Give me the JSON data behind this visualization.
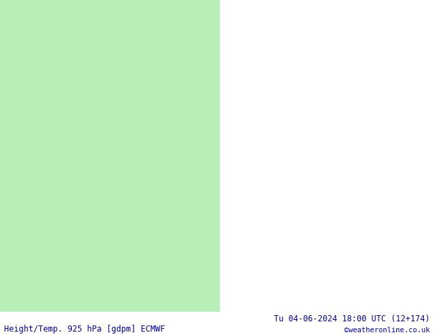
{
  "title_left": "Height/Temp. 925 hPa [gdpm] ECMWF",
  "title_right": "Tu 04-06-2024 18:00 UTC (12+174)",
  "copyright": "©weatheronline.co.uk",
  "bg_color": "#ffffff",
  "ocean_color": "#d0d0d0",
  "land_color": "#b8eeb8",
  "land_edge_color": "#000000",
  "fig_width": 6.34,
  "fig_height": 4.9,
  "dpi": 100,
  "footer_color": "#0000aa",
  "copyright_color": "#0000cc",
  "footer_fontsize": 8.5,
  "title_fontsize": 8.5,
  "lon_min": 85,
  "lon_max": 175,
  "lat_min": -15,
  "lat_max": 55
}
